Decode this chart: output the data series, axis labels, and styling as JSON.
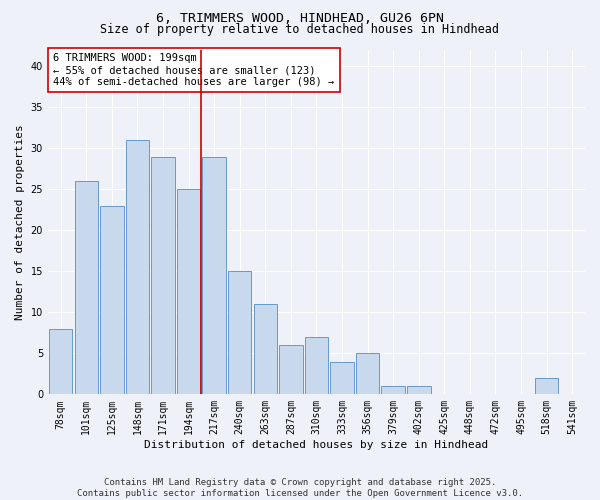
{
  "title": "6, TRIMMERS WOOD, HINDHEAD, GU26 6PN",
  "subtitle": "Size of property relative to detached houses in Hindhead",
  "xlabel": "Distribution of detached houses by size in Hindhead",
  "ylabel": "Number of detached properties",
  "categories": [
    "78sqm",
    "101sqm",
    "125sqm",
    "148sqm",
    "171sqm",
    "194sqm",
    "217sqm",
    "240sqm",
    "263sqm",
    "287sqm",
    "310sqm",
    "333sqm",
    "356sqm",
    "379sqm",
    "402sqm",
    "425sqm",
    "448sqm",
    "472sqm",
    "495sqm",
    "518sqm",
    "541sqm"
  ],
  "values": [
    8,
    26,
    23,
    31,
    29,
    25,
    29,
    15,
    11,
    6,
    7,
    4,
    5,
    1,
    1,
    0,
    0,
    0,
    0,
    2,
    0
  ],
  "bar_color": "#c8d9ee",
  "bar_edge_color": "#6699cc",
  "vline_x_index": 5,
  "vline_color": "#cc0000",
  "annotation_text": "6 TRIMMERS WOOD: 199sqm\n← 55% of detached houses are smaller (123)\n44% of semi-detached houses are larger (98) →",
  "annotation_box_color": "#ffffff",
  "annotation_box_edge": "#cc0000",
  "ylim": [
    0,
    42
  ],
  "yticks": [
    0,
    5,
    10,
    15,
    20,
    25,
    30,
    35,
    40
  ],
  "footer": "Contains HM Land Registry data © Crown copyright and database right 2025.\nContains public sector information licensed under the Open Government Licence v3.0.",
  "bg_color": "#eef2f8",
  "grid_color": "#ffffff",
  "title_fontsize": 9.5,
  "subtitle_fontsize": 8.5,
  "axis_label_fontsize": 8,
  "tick_fontsize": 7,
  "annotation_fontsize": 7.5,
  "footer_fontsize": 6.5
}
